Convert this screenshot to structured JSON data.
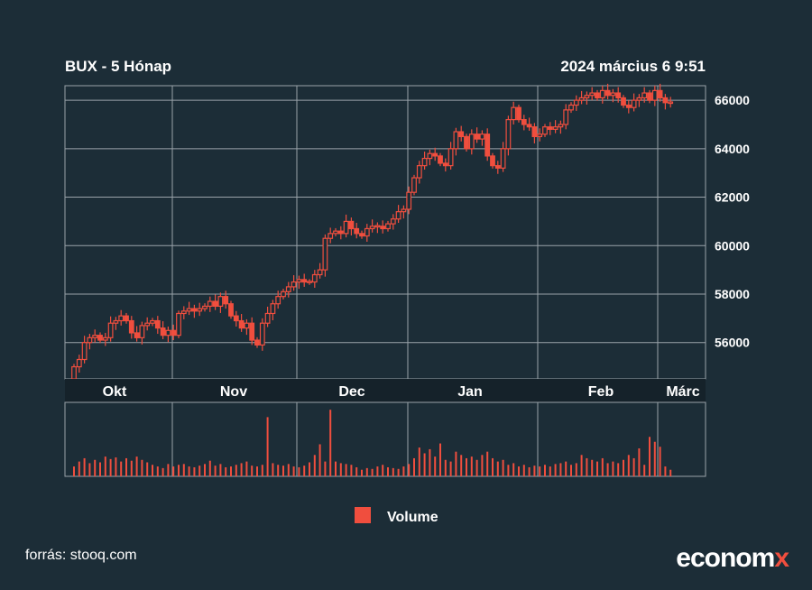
{
  "header": {
    "title": "BUX - 5 Hónap",
    "timestamp": "2024 március 6 9:51"
  },
  "footer": {
    "source": "forrás: stooq.com",
    "brand_main": "econom",
    "brand_x": "x"
  },
  "colors": {
    "background": "#1c2d37",
    "candle": "#f04e3e",
    "axis_band": "#15222a",
    "grid": "#9aa3aa"
  },
  "chart_data": {
    "type": "candlestick",
    "title": "BUX - 5 Hónap",
    "ylim": [
      54500,
      66600
    ],
    "y_ticks": [
      56000,
      58000,
      60000,
      62000,
      64000,
      66000
    ],
    "y_tick_labels": [
      "56000",
      "58000",
      "60000",
      "62000",
      "64000",
      "66000"
    ],
    "months": [
      {
        "label": "Okt",
        "bar_index": 4
      },
      {
        "label": "Nov",
        "bar_index": 26
      },
      {
        "label": "Dec",
        "bar_index": 48
      },
      {
        "label": "Jan",
        "bar_index": 69
      },
      {
        "label": "Feb",
        "bar_index": 92
      },
      {
        "label": "Márc",
        "bar_index": 113
      }
    ],
    "legend": [
      {
        "label": "Volume",
        "color": "#f04e3e"
      }
    ],
    "close": [
      55000,
      55300,
      56000,
      56200,
      56300,
      56100,
      56200,
      56800,
      56900,
      57100,
      56900,
      56400,
      56200,
      56700,
      56800,
      56900,
      56600,
      56300,
      56500,
      56300,
      57200,
      57300,
      57400,
      57300,
      57400,
      57500,
      57700,
      57500,
      57900,
      57600,
      57100,
      56900,
      56600,
      56800,
      56100,
      55900,
      56800,
      57200,
      57600,
      57900,
      58100,
      58300,
      58500,
      58600,
      58500,
      58500,
      58800,
      59000,
      60300,
      60500,
      60600,
      60500,
      61000,
      60700,
      60500,
      60400,
      60700,
      60800,
      60800,
      60700,
      60900,
      61100,
      61400,
      61500,
      62200,
      62800,
      63300,
      63600,
      63800,
      63700,
      63400,
      63300,
      64000,
      64700,
      64500,
      64000,
      64600,
      64400,
      64600,
      63700,
      63300,
      63200,
      64000,
      65200,
      65700,
      65200,
      65000,
      64900,
      64500,
      64600,
      64900,
      64800,
      64900,
      65000,
      65600,
      65800,
      66000,
      66100,
      66200,
      66300,
      66100,
      66400,
      66200,
      66300,
      66100,
      65800,
      65700,
      66000,
      66100,
      66300,
      66000,
      66400,
      66100,
      65900,
      65900
    ],
    "volume": [
      12,
      18,
      22,
      16,
      20,
      17,
      24,
      21,
      23,
      18,
      22,
      19,
      24,
      20,
      17,
      14,
      12,
      10,
      15,
      12,
      14,
      15,
      12,
      11,
      13,
      15,
      19,
      13,
      15,
      11,
      12,
      14,
      16,
      18,
      13,
      12,
      14,
      72,
      16,
      14,
      13,
      15,
      12,
      11,
      13,
      17,
      26,
      39,
      18,
      81,
      18,
      16,
      15,
      14,
      11,
      8,
      10,
      9,
      12,
      14,
      11,
      10,
      9,
      12,
      15,
      22,
      35,
      28,
      33,
      24,
      40,
      20,
      18,
      30,
      26,
      22,
      24,
      20,
      26,
      30,
      22,
      18,
      20,
      14,
      16,
      12,
      14,
      11,
      13,
      12,
      14,
      12,
      15,
      16,
      18,
      14,
      16,
      26,
      22,
      20,
      18,
      22,
      16,
      18,
      16,
      20,
      26,
      22,
      34,
      14,
      48,
      42,
      36,
      12,
      8
    ],
    "volume_max": 90
  }
}
